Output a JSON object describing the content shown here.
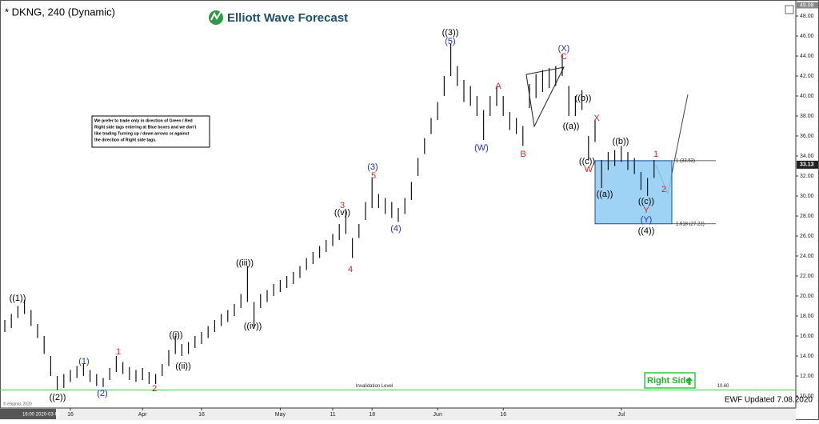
{
  "chart_data": {
    "type": "hilo",
    "title": "* DKNG, 240 (Dynamic)",
    "logo": "Elliott Wave Forecast",
    "color": "#111111",
    "categories": [
      null,
      null,
      null,
      null,
      null,
      null,
      null,
      null,
      null,
      null,
      "16",
      null,
      null,
      null,
      null,
      null,
      null,
      null,
      null,
      null,
      null,
      "Apr",
      null,
      null,
      null,
      null,
      null,
      null,
      null,
      null,
      "16",
      null,
      null,
      null,
      null,
      null,
      null,
      null,
      null,
      null,
      null,
      null,
      "May",
      null,
      null,
      null,
      null,
      null,
      null,
      null,
      "11",
      null,
      null,
      null,
      null,
      null,
      "18",
      null,
      null,
      null,
      null,
      null,
      null,
      null,
      null,
      null,
      "Jun",
      null,
      null,
      null,
      null,
      null,
      null,
      null,
      null,
      null,
      "16",
      null,
      null,
      null,
      null,
      null,
      null,
      null,
      null,
      null,
      null,
      null,
      null,
      null,
      null,
      null,
      null,
      null,
      "Jul",
      null,
      null,
      null,
      null,
      null
    ],
    "high": [
      17.6,
      18.2,
      19.0,
      19.6,
      18.6,
      17.2,
      16.0,
      14.0,
      12.0,
      12.2,
      12.6,
      13.0,
      13.2,
      12.6,
      12.2,
      11.8,
      12.8,
      14.0,
      13.4,
      12.9,
      12.6,
      12.8,
      12.4,
      12.2,
      13.2,
      14.6,
      16.0,
      15.2,
      15.4,
      16.0,
      16.4,
      17.0,
      17.6,
      18.2,
      18.6,
      19.2,
      20.2,
      23.0,
      19.4,
      20.2,
      20.6,
      21.2,
      21.6,
      22.0,
      22.4,
      23.0,
      23.8,
      24.4,
      25.0,
      25.6,
      26.2,
      27.2,
      28.6,
      25.8,
      27.2,
      29.4,
      31.8,
      30.2,
      29.8,
      29.4,
      28.8,
      29.8,
      31.4,
      33.8,
      35.8,
      37.8,
      39.4,
      42.0,
      45.2,
      43.0,
      41.6,
      41.0,
      40.0,
      38.6,
      40.0,
      41.0,
      40.0,
      38.4,
      37.8,
      37.0,
      41.2,
      42.2,
      42.6,
      42.8,
      43.0,
      44.2,
      41.0,
      40.0,
      40.6,
      36.0,
      37.6,
      33.6,
      34.4,
      34.6,
      35.0,
      34.4,
      33.8,
      32.4,
      31.8,
      33.6
    ],
    "low": [
      16.4,
      16.8,
      17.8,
      18.2,
      17.0,
      15.8,
      14.2,
      12.0,
      10.6,
      10.8,
      11.4,
      11.8,
      12.0,
      11.4,
      11.0,
      10.9,
      11.6,
      12.4,
      12.2,
      11.6,
      11.4,
      11.6,
      11.2,
      11.2,
      12.0,
      13.0,
      14.2,
      14.0,
      14.2,
      14.8,
      15.2,
      15.8,
      16.4,
      17.0,
      17.4,
      18.0,
      18.8,
      19.4,
      17.0,
      18.8,
      19.4,
      20.0,
      20.4,
      20.8,
      21.2,
      21.8,
      22.6,
      23.2,
      23.8,
      24.4,
      25.0,
      25.6,
      26.2,
      23.8,
      25.8,
      27.6,
      28.8,
      28.8,
      28.2,
      27.8,
      27.4,
      28.2,
      29.6,
      32.0,
      34.2,
      36.2,
      37.6,
      40.0,
      42.0,
      41.0,
      39.4,
      39.0,
      38.0,
      35.6,
      38.0,
      39.0,
      38.0,
      36.6,
      36.2,
      35.0,
      38.8,
      39.8,
      40.4,
      40.8,
      41.0,
      42.0,
      38.0,
      38.0,
      38.6,
      33.6,
      35.4,
      30.8,
      32.6,
      33.0,
      33.4,
      32.6,
      32.2,
      30.6,
      30.0,
      31.8
    ],
    "ylim": [
      8.8,
      49.2
    ],
    "yticks": [
      {
        "value": 10,
        "label": "10.00"
      },
      {
        "value": 12,
        "label": "12.00"
      },
      {
        "value": 14,
        "label": "14.00"
      },
      {
        "value": 16,
        "label": "16.00"
      },
      {
        "value": 18,
        "label": "18.00"
      },
      {
        "value": 20,
        "label": "20.00"
      },
      {
        "value": 22,
        "label": "22.00"
      },
      {
        "value": 24,
        "label": "24.00"
      },
      {
        "value": 26,
        "label": "26.00"
      },
      {
        "value": 28,
        "label": "28.00"
      },
      {
        "value": 30,
        "label": "30.00"
      },
      {
        "value": 32,
        "label": "32.00"
      },
      {
        "value": 34,
        "label": "34.00"
      },
      {
        "value": 36,
        "label": "36.00"
      },
      {
        "value": 38,
        "label": "38.00"
      },
      {
        "value": 40,
        "label": "40.00"
      },
      {
        "value": 42,
        "label": "42.00"
      },
      {
        "value": 44,
        "label": "44.00"
      },
      {
        "value": 46,
        "label": "46.00"
      },
      {
        "value": 48,
        "label": "48.00"
      }
    ],
    "top_price": 49.08,
    "last_price": 33.13,
    "box": {
      "color": "#8ecbf5",
      "values": [
        33.53,
        27.22
      ],
      "value_labels": [
        "1 (33.53)",
        "1.618 (27.22)"
      ]
    },
    "invalidation": {
      "label": "Invalidation Level",
      "value": 10.6,
      "value_label": "10.60",
      "color": "#3ad13a"
    },
    "wave_labels": [
      {
        "text": "((1))",
        "color": "#000000"
      },
      {
        "text": "((2))",
        "color": "#000000"
      },
      {
        "text": "(1)",
        "color": "#1f2fd0"
      },
      {
        "text": "(2)",
        "color": "#1f2fd0"
      },
      {
        "text": "1",
        "color": "#e02020"
      },
      {
        "text": "2",
        "color": "#e02020"
      },
      {
        "text": "((i))",
        "color": "#000000"
      },
      {
        "text": "((ii))",
        "color": "#000000"
      },
      {
        "text": "((iii))",
        "color": "#000000"
      },
      {
        "text": "((iv))",
        "color": "#000000"
      },
      {
        "text": "3",
        "color": "#e02020"
      },
      {
        "text": "((v))",
        "color": "#000000"
      },
      {
        "text": "4",
        "color": "#e02020"
      },
      {
        "text": "(3)",
        "color": "#1f2fd0"
      },
      {
        "text": "5",
        "color": "#e02020"
      },
      {
        "text": "(4)",
        "color": "#1f2fd0"
      },
      {
        "text": "((3))",
        "color": "#000000"
      },
      {
        "text": "(5)",
        "color": "#1f2fd0"
      },
      {
        "text": "A",
        "color": "#e02020"
      },
      {
        "text": "(W)",
        "color": "#1f2fd0"
      },
      {
        "text": "B",
        "color": "#e02020"
      },
      {
        "text": "(X)",
        "color": "#1f2fd0"
      },
      {
        "text": "C",
        "color": "#e02020"
      },
      {
        "text": "((b))",
        "color": "#000000"
      },
      {
        "text": "((a))",
        "color": "#000000"
      },
      {
        "text": "X",
        "color": "#e02020"
      },
      {
        "text": "((c))",
        "color": "#000000"
      },
      {
        "text": "W",
        "color": "#e02020"
      },
      {
        "text": "((b))",
        "color": "#000000"
      },
      {
        "text": "((a))",
        "color": "#000000"
      },
      {
        "text": "((c))",
        "color": "#000000"
      },
      {
        "text": "Y",
        "color": "#e02020"
      },
      {
        "text": "(Y)",
        "color": "#1f2fd0"
      },
      {
        "text": "((4))",
        "color": "#000000"
      },
      {
        "text": "1",
        "color": "#e02020"
      },
      {
        "text": "2",
        "color": "#e02020"
      }
    ],
    "note": [
      "We prefer to trade only in direction of Green / Red",
      "Right side tags entering at Blue boxes and we don't",
      "like trading Turning up / down arrows or against",
      "the direction of Right side tags."
    ],
    "right_side": "Right Side",
    "footer": "EWF Updated 7.08.2020",
    "cursor_date": "16:00 2020-03-09",
    "copyright": "© eSignal, 2020"
  }
}
